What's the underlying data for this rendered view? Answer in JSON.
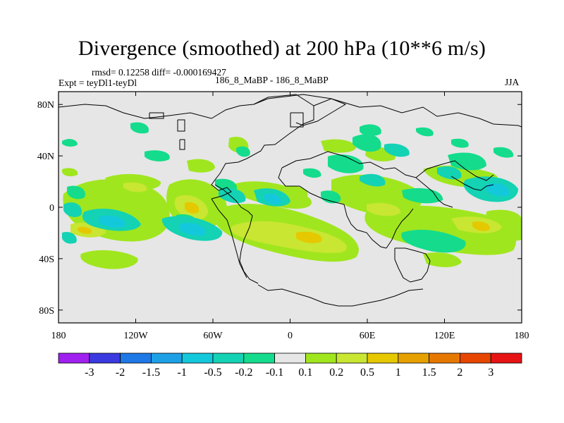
{
  "title": "Divergence (smoothed) at 200 hPa (10**6 m/s)",
  "stats_line": "rmsd= 0.12258 diff= -0.000169427",
  "expt_line": "Expt = teyDl1-teyDl",
  "run_label": "186_8_MaBP - 186_8_MaBP",
  "season": "JJA",
  "chart_data": {
    "type": "contour-map",
    "variable": "Divergence (smoothed)",
    "level": "200 hPa",
    "units": "10**6 m/s",
    "season": "JJA",
    "x_ticks": [
      "180",
      "120W",
      "60W",
      "0",
      "60E",
      "120E",
      "180"
    ],
    "x_tick_values": [
      -180,
      -120,
      -60,
      0,
      60,
      120,
      180
    ],
    "y_ticks": [
      "80N",
      "40N",
      "0",
      "40S",
      "80S"
    ],
    "y_tick_values": [
      80,
      40,
      0,
      -40,
      -80
    ],
    "xlim": [
      -180,
      180
    ],
    "ylim": [
      -90,
      90
    ],
    "colorbar": {
      "labels": [
        "-3",
        "-2",
        "-1.5",
        "-1",
        "-0.5",
        "-0.2",
        "-0.1",
        "0.1",
        "0.2",
        "0.5",
        "1",
        "1.5",
        "2",
        "3"
      ],
      "colors": [
        "#a020f0",
        "#3a3ae0",
        "#1e78e6",
        "#1ea0e6",
        "#14c8dc",
        "#14d2b4",
        "#14dc8c",
        "#e6e6e6",
        "#a0e61e",
        "#c8e632",
        "#e6c800",
        "#e6a000",
        "#e67800",
        "#e64600",
        "#e61414"
      ]
    },
    "features": [
      {
        "name": "tropical Pacific positive band",
        "lon": [
          -160,
          -90
        ],
        "lat": [
          -20,
          15
        ],
        "level": "0.2 to 0.5"
      },
      {
        "name": "eastern Pacific negative",
        "lon": [
          -100,
          -40
        ],
        "lat": [
          -30,
          0
        ],
        "level": "-0.5 to -0.2"
      },
      {
        "name": "South Atlantic positive tongue",
        "lon": [
          -40,
          50
        ],
        "lat": [
          -40,
          0
        ],
        "level": "0.2 to 0.5"
      },
      {
        "name": "Indian Ocean positive",
        "lon": [
          50,
          120
        ],
        "lat": [
          -40,
          10
        ],
        "level": "0.2 to 0.5"
      },
      {
        "name": "western Pacific negative",
        "lon": [
          140,
          180
        ],
        "lat": [
          -10,
          30
        ],
        "level": "-0.2 to -0.1"
      },
      {
        "name": "central Pacific positive",
        "lon": [
          130,
          180
        ],
        "lat": [
          -30,
          -5
        ],
        "level": "0.2 to 0.5"
      }
    ]
  }
}
